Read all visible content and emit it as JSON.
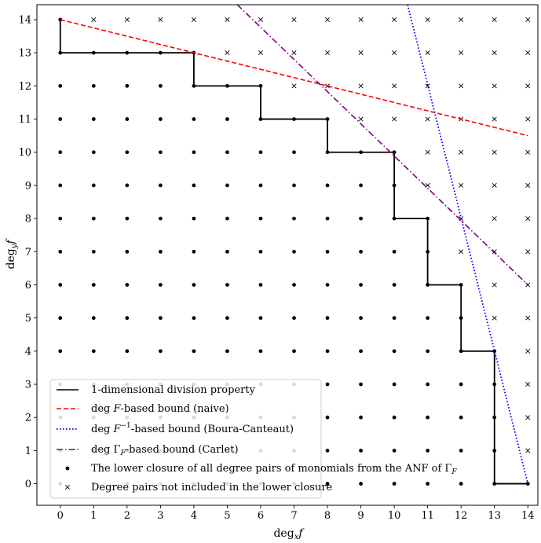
{
  "chart_data": {
    "type": "scatter",
    "xlabel": "deg_x f",
    "ylabel": "deg_y f",
    "xlim": [
      -0.7,
      14.3
    ],
    "ylim": [
      -0.65,
      14.45
    ],
    "x_ticks": [
      0,
      1,
      2,
      3,
      4,
      5,
      6,
      7,
      8,
      9,
      10,
      11,
      12,
      13,
      14
    ],
    "y_ticks": [
      0,
      1,
      2,
      3,
      4,
      5,
      6,
      7,
      8,
      9,
      10,
      11,
      12,
      13,
      14
    ],
    "staircase": {
      "name": "1-dimensional division property",
      "color": "#000000",
      "x": [
        0,
        0,
        4,
        4,
        6,
        6,
        8,
        8,
        10,
        10,
        11,
        11,
        12,
        12,
        13,
        13,
        14
      ],
      "y": [
        14,
        13,
        13,
        12,
        12,
        11,
        11,
        10,
        10,
        8,
        8,
        6,
        6,
        4,
        4,
        0,
        0
      ]
    },
    "lower_closure_max_y": [
      14,
      13,
      13,
      13,
      13,
      12,
      12,
      11,
      11,
      10,
      10,
      8,
      6,
      4,
      0
    ],
    "bounds": [
      {
        "name": "deg F-based bound (naive)",
        "color": "#ff0000",
        "style": "dashed",
        "x": [
          0,
          14
        ],
        "y": [
          14,
          10.5
        ]
      },
      {
        "name": "deg F^-1-based bound (Boura-Canteaut)",
        "color": "#0000ff",
        "style": "dotted",
        "x": [
          10.4,
          14
        ],
        "y": [
          14.45,
          0
        ]
      },
      {
        "name": "deg Γ_F-based bound (Carlet)",
        "color": "#800080",
        "style": "dashdot",
        "x": [
          5.3,
          14
        ],
        "y": [
          14.45,
          6
        ]
      }
    ],
    "legend": {
      "position": "lower-left",
      "entries": [
        {
          "label": "1-dimensional division property",
          "marker": "solid-line"
        },
        {
          "label": "deg F-based bound (naive)",
          "marker": "dashed-line"
        },
        {
          "label": "deg F⁻¹-based bound (Boura-Canteaut)",
          "marker": "dotted-line"
        },
        {
          "label": "deg ΓF-based bound (Carlet)",
          "marker": "dashdot-line"
        },
        {
          "label": "The lower closure of all degree pairs of monomials from the ANF of ΓF",
          "marker": "dot"
        },
        {
          "label": "Degree pairs not included in the lower closure",
          "marker": "cross"
        }
      ]
    },
    "grid": false
  }
}
